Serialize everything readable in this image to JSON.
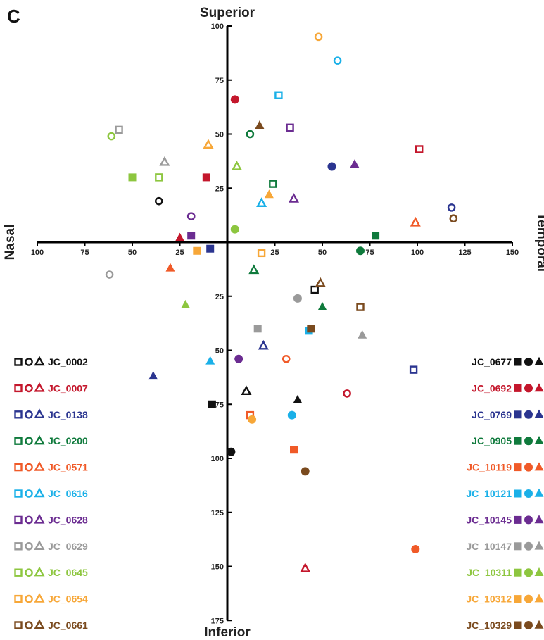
{
  "panel_label": "C",
  "chart_data": {
    "type": "scatter",
    "axis_titles": {
      "top": "Superior",
      "bottom": "Inferior",
      "left": "Nasal",
      "right": "Temporal"
    },
    "x_axis": {
      "range": [
        -100,
        150
      ],
      "tick_values": [
        -100,
        -75,
        -50,
        -25,
        25,
        50,
        75,
        100,
        125,
        150
      ],
      "tick_labels": [
        "100",
        "75",
        "50",
        "25",
        "25",
        "50",
        "75",
        "100",
        "125",
        "150"
      ]
    },
    "y_axis": {
      "range": [
        -175,
        100
      ],
      "tick_values": [
        100,
        75,
        50,
        25,
        -25,
        -50,
        -75,
        -100,
        -125,
        -150,
        -175
      ],
      "tick_labels": [
        "100",
        "75",
        "50",
        "25",
        "25",
        "50",
        "75",
        "100",
        "125",
        "150",
        "175"
      ]
    },
    "marker_note": "open = unfilled markers, filled = solid markers; square / circle / triangle shapes",
    "series": [
      {
        "name": "JC_0002",
        "color": "#111111",
        "fill": "open",
        "points": [
          {
            "shape": "circle",
            "x": -36,
            "y": 19
          },
          {
            "shape": "square",
            "x": 46,
            "y": -22
          },
          {
            "shape": "triangle",
            "x": 10,
            "y": -69
          }
        ]
      },
      {
        "name": "JC_0007",
        "color": "#c4172c",
        "fill": "open",
        "points": [
          {
            "shape": "square",
            "x": 101,
            "y": 43
          },
          {
            "shape": "circle",
            "x": 63,
            "y": -70
          },
          {
            "shape": "triangle",
            "x": 41,
            "y": -151
          }
        ]
      },
      {
        "name": "JC_0138",
        "color": "#2b3590",
        "fill": "open",
        "points": [
          {
            "shape": "square",
            "x": 98,
            "y": -59
          },
          {
            "shape": "circle",
            "x": 118,
            "y": 16
          },
          {
            "shape": "triangle",
            "x": 19,
            "y": -48
          }
        ]
      },
      {
        "name": "JC_0200",
        "color": "#0f7a3c",
        "fill": "open",
        "points": [
          {
            "shape": "square",
            "x": 24,
            "y": 27
          },
          {
            "shape": "circle",
            "x": 12,
            "y": 50
          },
          {
            "shape": "triangle",
            "x": 14,
            "y": -13
          }
        ]
      },
      {
        "name": "JC_0571",
        "color": "#f05a28",
        "fill": "open",
        "points": [
          {
            "shape": "square",
            "x": 12,
            "y": -80
          },
          {
            "shape": "circle",
            "x": 31,
            "y": -54
          },
          {
            "shape": "triangle",
            "x": 99,
            "y": 9
          }
        ]
      },
      {
        "name": "JC_0616",
        "color": "#1ab0e8",
        "fill": "open",
        "points": [
          {
            "shape": "square",
            "x": 27,
            "y": 68
          },
          {
            "shape": "circle",
            "x": 58,
            "y": 84
          },
          {
            "shape": "triangle",
            "x": 18,
            "y": 18
          }
        ]
      },
      {
        "name": "JC_0628",
        "color": "#6b2c91",
        "fill": "open",
        "points": [
          {
            "shape": "square",
            "x": 33,
            "y": 53
          },
          {
            "shape": "circle",
            "x": -19,
            "y": 12
          },
          {
            "shape": "triangle",
            "x": 35,
            "y": 20
          }
        ]
      },
      {
        "name": "JC_0629",
        "color": "#9a9a9a",
        "fill": "open",
        "points": [
          {
            "shape": "square",
            "x": -57,
            "y": 52
          },
          {
            "shape": "circle",
            "x": -62,
            "y": -15
          },
          {
            "shape": "triangle",
            "x": -33,
            "y": 37
          }
        ]
      },
      {
        "name": "JC_0645",
        "color": "#8dc63f",
        "fill": "open",
        "points": [
          {
            "shape": "square",
            "x": -36,
            "y": 30
          },
          {
            "shape": "circle",
            "x": -61,
            "y": 49
          },
          {
            "shape": "triangle",
            "x": 5,
            "y": 35
          }
        ]
      },
      {
        "name": "JC_0654",
        "color": "#f7a738",
        "fill": "open",
        "points": [
          {
            "shape": "square",
            "x": 18,
            "y": -5
          },
          {
            "shape": "circle",
            "x": 48,
            "y": 95
          },
          {
            "shape": "triangle",
            "x": -10,
            "y": 45
          }
        ]
      },
      {
        "name": "JC_0661",
        "color": "#7a4a1e",
        "fill": "open",
        "points": [
          {
            "shape": "square",
            "x": 70,
            "y": -30
          },
          {
            "shape": "circle",
            "x": 119,
            "y": 11
          },
          {
            "shape": "triangle",
            "x": 49,
            "y": -19
          }
        ]
      },
      {
        "name": "JC_0677",
        "color": "#111111",
        "fill": "filled",
        "points": [
          {
            "shape": "square",
            "x": -8,
            "y": -75
          },
          {
            "shape": "circle",
            "x": 2,
            "y": -97
          },
          {
            "shape": "triangle",
            "x": 37,
            "y": -73
          }
        ]
      },
      {
        "name": "JC_0692",
        "color": "#c4172c",
        "fill": "filled",
        "points": [
          {
            "shape": "square",
            "x": -11,
            "y": 30
          },
          {
            "shape": "circle",
            "x": 4,
            "y": 66
          },
          {
            "shape": "triangle",
            "x": -25,
            "y": 2
          }
        ]
      },
      {
        "name": "JC_0769",
        "color": "#2b3590",
        "fill": "filled",
        "points": [
          {
            "shape": "square",
            "x": -9,
            "y": -3
          },
          {
            "shape": "circle",
            "x": 55,
            "y": 35
          },
          {
            "shape": "triangle",
            "x": -39,
            "y": -62
          }
        ]
      },
      {
        "name": "JC_0905",
        "color": "#0f7a3c",
        "fill": "filled",
        "points": [
          {
            "shape": "square",
            "x": 78,
            "y": 3
          },
          {
            "shape": "circle",
            "x": 70,
            "y": -4
          },
          {
            "shape": "triangle",
            "x": 50,
            "y": -30
          }
        ]
      },
      {
        "name": "JC_10119",
        "color": "#f05a28",
        "fill": "filled",
        "points": [
          {
            "shape": "square",
            "x": 35,
            "y": -96
          },
          {
            "shape": "circle",
            "x": 99,
            "y": -142
          },
          {
            "shape": "triangle",
            "x": -30,
            "y": -12
          }
        ]
      },
      {
        "name": "JC_10121",
        "color": "#1ab0e8",
        "fill": "filled",
        "points": [
          {
            "shape": "square",
            "x": 43,
            "y": -41
          },
          {
            "shape": "circle",
            "x": 34,
            "y": -80
          },
          {
            "shape": "triangle",
            "x": -9,
            "y": -55
          }
        ]
      },
      {
        "name": "JC_10145",
        "color": "#6b2c91",
        "fill": "filled",
        "points": [
          {
            "shape": "square",
            "x": -19,
            "y": 3
          },
          {
            "shape": "circle",
            "x": 6,
            "y": -54
          },
          {
            "shape": "triangle",
            "x": 67,
            "y": 36
          }
        ]
      },
      {
        "name": "JC_10147",
        "color": "#9a9a9a",
        "fill": "filled",
        "points": [
          {
            "shape": "square",
            "x": 16,
            "y": -40
          },
          {
            "shape": "circle",
            "x": 37,
            "y": -26
          },
          {
            "shape": "triangle",
            "x": 71,
            "y": -43
          }
        ]
      },
      {
        "name": "JC_10311",
        "color": "#8dc63f",
        "fill": "filled",
        "points": [
          {
            "shape": "square",
            "x": -50,
            "y": 30
          },
          {
            "shape": "circle",
            "x": 4,
            "y": 6
          },
          {
            "shape": "triangle",
            "x": -22,
            "y": -29
          }
        ]
      },
      {
        "name": "JC_10312",
        "color": "#f7a738",
        "fill": "filled",
        "points": [
          {
            "shape": "square",
            "x": -16,
            "y": -4
          },
          {
            "shape": "circle",
            "x": 13,
            "y": -82
          },
          {
            "shape": "triangle",
            "x": 22,
            "y": 22
          }
        ]
      },
      {
        "name": "JC_10329",
        "color": "#7a4a1e",
        "fill": "filled",
        "points": [
          {
            "shape": "square",
            "x": 44,
            "y": -40
          },
          {
            "shape": "circle",
            "x": 41,
            "y": -106
          },
          {
            "shape": "triangle",
            "x": 17,
            "y": 54
          }
        ]
      }
    ]
  }
}
